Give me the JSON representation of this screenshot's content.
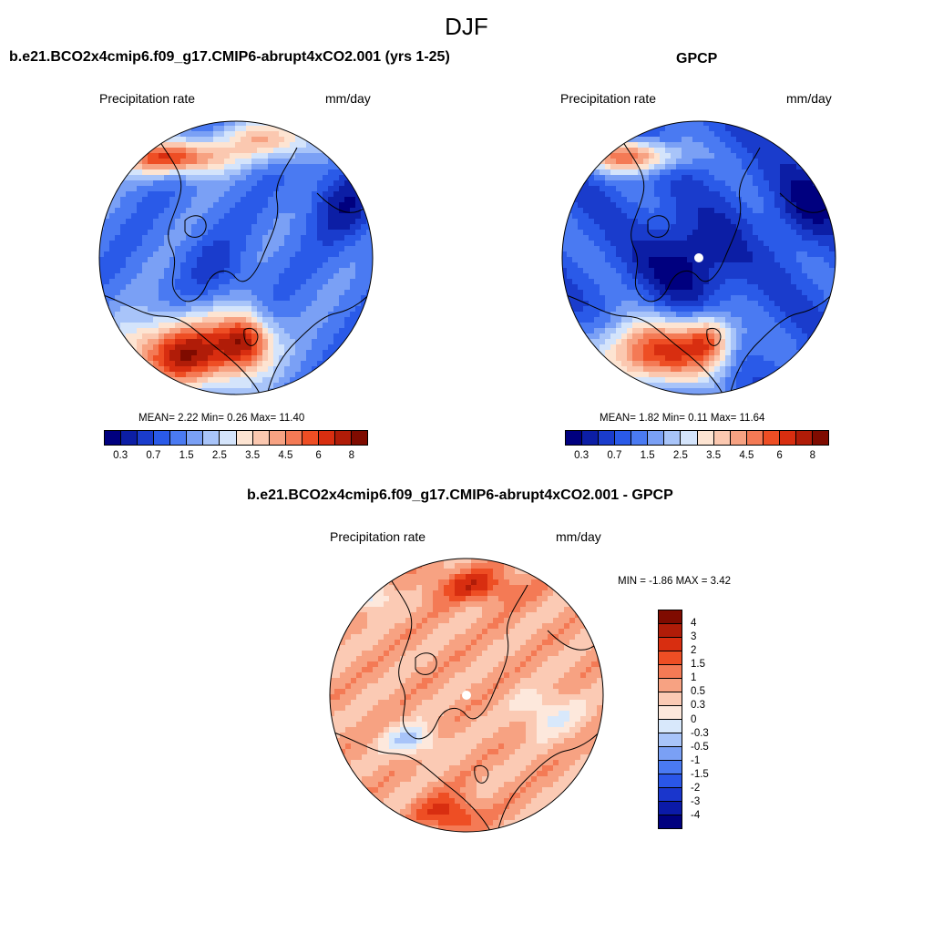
{
  "figure": {
    "title": "DJF"
  },
  "colors": {
    "abs_levels": [
      "#00007f",
      "#0c1ea5",
      "#1a3ccc",
      "#2a5ae8",
      "#4a7af2",
      "#7aa0f5",
      "#a8c4f9",
      "#d4e4fb",
      "#fde4d2",
      "#fbc8b0",
      "#f7a282",
      "#f47a55",
      "#ee4e24",
      "#d82e10",
      "#b01c08",
      "#7f0b00"
    ],
    "diff_levels": [
      "#00007f",
      "#0b1aa8",
      "#1a36cc",
      "#2a56e8",
      "#4a7af2",
      "#7aa0f5",
      "#a8c4f9",
      "#d8e8fb",
      "#fde8dc",
      "#fbcab4",
      "#f7a282",
      "#f47a55",
      "#ee4e24",
      "#d82e10",
      "#b01c08",
      "#7f0b00"
    ]
  },
  "panels": {
    "model": {
      "title": "b.e21.BCO2x4cmip6.f09_g17.CMIP6-abrupt4xCO2.001 (yrs 1-25)",
      "left_label": "Precipitation rate",
      "right_label": "mm/day",
      "stats": "MEAN=   2.22  Min=   0.26  Max=  11.40"
    },
    "obs": {
      "title": "GPCP",
      "left_label": "Precipitation rate",
      "right_label": "mm/day",
      "stats": "MEAN=   1.82  Min=   0.11  Max=  11.64"
    },
    "diff": {
      "title": "b.e21.BCO2x4cmip6.f09_g17.CMIP6-abrupt4xCO2.001 - GPCP",
      "left_label": "Precipitation rate",
      "right_label": "mm/day",
      "stats": "MIN =  -1.86 MAX =   3.42"
    }
  },
  "colorbars": {
    "abs_ticks": [
      "0.3",
      "0.7",
      "1.5",
      "2.5",
      "3.5",
      "4.5",
      "6",
      "8"
    ],
    "diff_ticks": [
      "4",
      "3",
      "2",
      "1.5",
      "1",
      "0.5",
      "0.3",
      "0",
      "-0.3",
      "-0.5",
      "-1",
      "-1.5",
      "-2",
      "-3",
      "-4"
    ]
  }
}
